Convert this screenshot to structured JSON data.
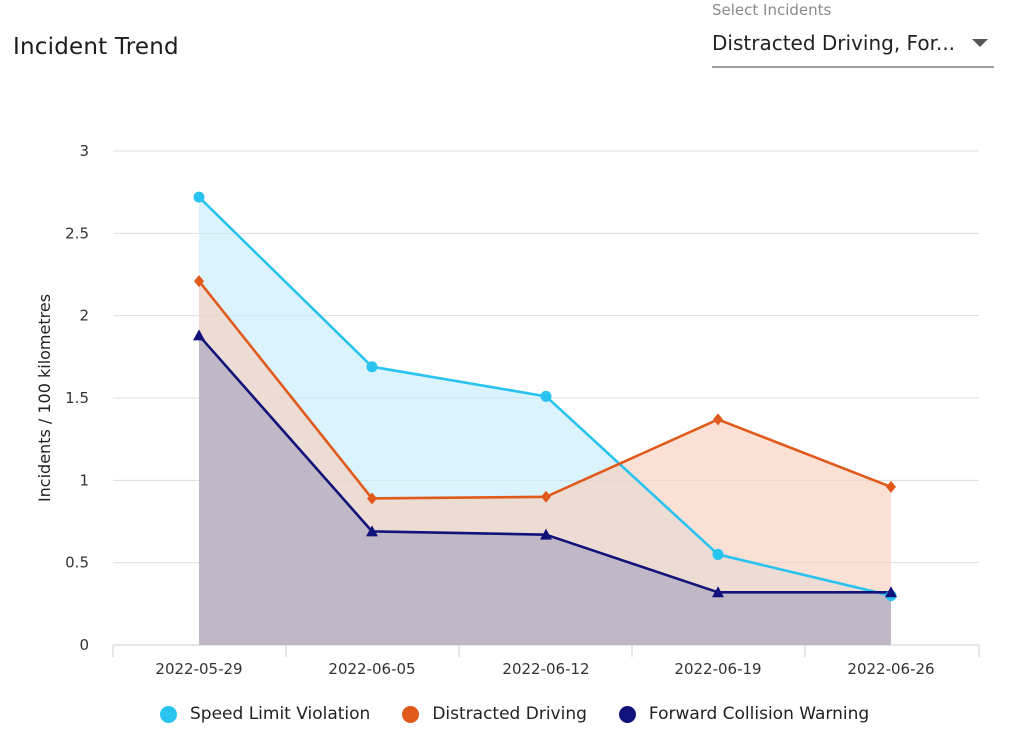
{
  "header": {
    "title": "Incident Trend",
    "select_label": "Select Incidents",
    "select_value": "Distracted Driving, For..."
  },
  "chart_data": {
    "type": "area",
    "title": "Incident Trend",
    "xlabel": "",
    "ylabel": "Incidents / 100 kilometres",
    "categories": [
      "2022-05-29",
      "2022-06-05",
      "2022-06-12",
      "2022-06-19",
      "2022-06-26"
    ],
    "ylim": [
      0,
      3
    ],
    "yticks": [
      0,
      0.5,
      1,
      1.5,
      2,
      2.5,
      3
    ],
    "ytick_labels": [
      "0",
      "0.5",
      "1",
      "1.5",
      "2",
      "2.5",
      "3"
    ],
    "grid": true,
    "legend_position": "bottom",
    "series": [
      {
        "name": "Speed Limit Violation",
        "color": "#29c3f0",
        "fill": "#c4ecfa",
        "marker": "circle",
        "values": [
          2.72,
          1.69,
          1.51,
          0.55,
          0.3
        ]
      },
      {
        "name": "Distracted Driving",
        "color": "#e05a1c",
        "fill": "#f7cdbb",
        "marker": "diamond",
        "values": [
          2.21,
          0.89,
          0.9,
          1.37,
          0.96
        ]
      },
      {
        "name": "Forward Collision Warning",
        "color": "#12137a",
        "fill": "#a6a2bf",
        "marker": "triangle",
        "values": [
          1.88,
          0.69,
          0.67,
          0.32,
          0.32
        ]
      }
    ]
  }
}
